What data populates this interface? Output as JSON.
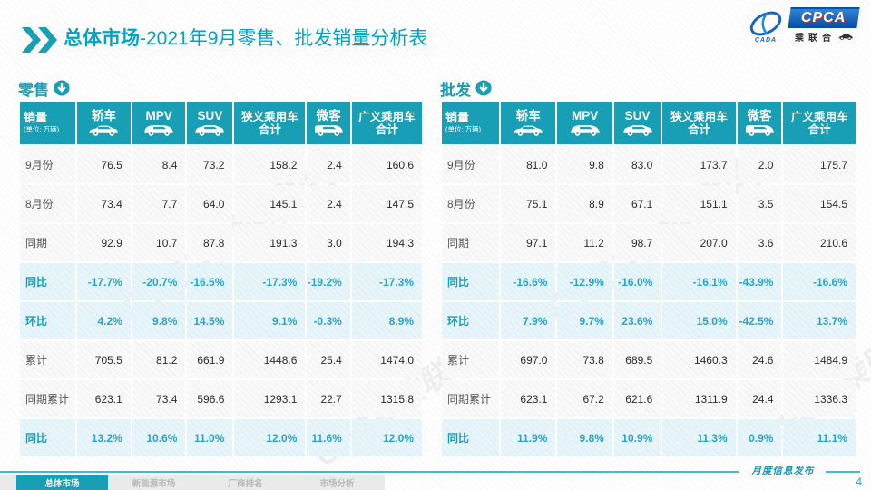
{
  "title": {
    "bold": "总体市场",
    "rest": "-2021年9月零售、批发销量分析表"
  },
  "logo": {
    "cpca": "CPCA",
    "cada": "CADA",
    "chinese": "乘联合"
  },
  "tables": [
    {
      "section_label": "零售",
      "unit_header": {
        "title": "销量",
        "unit": "(单位: 万辆)"
      },
      "columns": [
        {
          "line1": "轿车",
          "icon": "sedan-car-icon"
        },
        {
          "line1": "MPV",
          "icon": "mpv-car-icon"
        },
        {
          "line1": "SUV",
          "icon": "suv-car-icon"
        },
        {
          "line1": "狭义乘用车",
          "line2": "合计"
        },
        {
          "line1": "微客",
          "icon": "microvan-car-icon"
        },
        {
          "line1": "广义乘用车",
          "line2": "合计"
        }
      ],
      "rows": [
        {
          "label": "9月份",
          "type": "data",
          "values": [
            "76.5",
            "8.4",
            "73.2",
            "158.2",
            "2.4",
            "160.6"
          ]
        },
        {
          "label": "8月份",
          "type": "data",
          "values": [
            "73.4",
            "7.7",
            "64.0",
            "145.1",
            "2.4",
            "147.5"
          ]
        },
        {
          "label": "同期",
          "type": "data",
          "values": [
            "92.9",
            "10.7",
            "87.8",
            "191.3",
            "3.0",
            "194.3"
          ]
        },
        {
          "label": "同比",
          "type": "ratio",
          "values": [
            "-17.7%",
            "-20.7%",
            "-16.5%",
            "-17.3%",
            "-19.2%",
            "-17.3%"
          ]
        },
        {
          "label": "环比",
          "type": "ratio",
          "values": [
            "4.2%",
            "9.8%",
            "14.5%",
            "9.1%",
            "-0.3%",
            "8.9%"
          ]
        },
        {
          "label": "累计",
          "type": "data",
          "values": [
            "705.5",
            "81.2",
            "661.9",
            "1448.6",
            "25.4",
            "1474.0"
          ]
        },
        {
          "label": "同期累计",
          "type": "data",
          "values": [
            "623.1",
            "73.4",
            "596.6",
            "1293.1",
            "22.7",
            "1315.8"
          ]
        },
        {
          "label": "同比",
          "type": "ratio",
          "values": [
            "13.2%",
            "10.6%",
            "11.0%",
            "12.0%",
            "11.6%",
            "12.0%"
          ]
        }
      ]
    },
    {
      "section_label": "批发",
      "unit_header": {
        "title": "销量",
        "unit": "(单位: 万辆)"
      },
      "columns": [
        {
          "line1": "轿车",
          "icon": "sedan-car-icon"
        },
        {
          "line1": "MPV",
          "icon": "mpv-car-icon"
        },
        {
          "line1": "SUV",
          "icon": "suv-car-icon"
        },
        {
          "line1": "狭义乘用车",
          "line2": "合计"
        },
        {
          "line1": "微客",
          "icon": "microvan-car-icon"
        },
        {
          "line1": "广义乘用车",
          "line2": "合计"
        }
      ],
      "rows": [
        {
          "label": "9月份",
          "type": "data",
          "values": [
            "81.0",
            "9.8",
            "83.0",
            "173.7",
            "2.0",
            "175.7"
          ]
        },
        {
          "label": "8月份",
          "type": "data",
          "values": [
            "75.1",
            "8.9",
            "67.1",
            "151.1",
            "3.5",
            "154.5"
          ]
        },
        {
          "label": "同期",
          "type": "data",
          "values": [
            "97.1",
            "11.2",
            "98.7",
            "207.0",
            "3.6",
            "210.6"
          ]
        },
        {
          "label": "同比",
          "type": "ratio",
          "values": [
            "-16.6%",
            "-12.9%",
            "-16.0%",
            "-16.1%",
            "-43.9%",
            "-16.6%"
          ]
        },
        {
          "label": "环比",
          "type": "ratio",
          "values": [
            "7.9%",
            "9.7%",
            "23.6%",
            "15.0%",
            "-42.5%",
            "13.7%"
          ]
        },
        {
          "label": "累计",
          "type": "data",
          "values": [
            "697.0",
            "73.8",
            "689.5",
            "1460.3",
            "24.6",
            "1484.9"
          ]
        },
        {
          "label": "同期累计",
          "type": "data",
          "values": [
            "623.1",
            "67.2",
            "621.6",
            "1311.9",
            "24.4",
            "1336.3"
          ]
        },
        {
          "label": "同比",
          "type": "ratio",
          "values": [
            "11.9%",
            "9.8%",
            "10.9%",
            "11.3%",
            "0.9%",
            "11.1%"
          ]
        }
      ]
    }
  ],
  "footer": {
    "tabs": [
      {
        "label": "总体市场",
        "active": true
      },
      {
        "label": "新能源市场",
        "active": false
      },
      {
        "label": "厂商排名",
        "active": false
      },
      {
        "label": "市场分析",
        "active": false
      }
    ],
    "release_label": "月度信息发布",
    "page_number": "4"
  },
  "colors": {
    "teal": "#189EB5",
    "title_teal": "#00A3C6",
    "ratio_text": "#2BA3C8",
    "ratio_bg": "#E3F2F8"
  }
}
